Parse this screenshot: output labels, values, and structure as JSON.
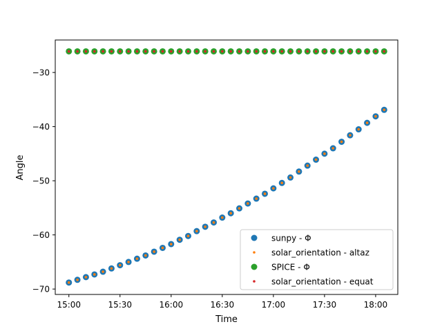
{
  "chart_data": {
    "type": "scatter",
    "xlabel": "Time",
    "ylabel": "Angle",
    "x_tick_labels": [
      "15:00",
      "15:30",
      "16:00",
      "16:30",
      "17:00",
      "17:30",
      "18:00"
    ],
    "x_ticks": [
      "15:00",
      "15:30",
      "16:00",
      "16:30",
      "17:00",
      "17:30",
      "18:00"
    ],
    "y_ticks": [
      -30,
      -40,
      -50,
      -60,
      -70
    ],
    "y_tick_labels": [
      "−30",
      "−40",
      "−50",
      "−60",
      "−70"
    ],
    "xlim": [
      "14:52",
      "18:13"
    ],
    "ylim": [
      -71,
      -24
    ],
    "grid": false,
    "legend": {
      "position": "lower-right",
      "entries": [
        {
          "label": "sunpy - Φ",
          "color": "#1f77b4",
          "marker": "large-circle"
        },
        {
          "label": "solar_orientation - altaz",
          "color": "#ff7f0e",
          "marker": "small-circle"
        },
        {
          "label": "SPICE - Φ",
          "color": "#2ca02c",
          "marker": "large-circle"
        },
        {
          "label": "solar_orientation - equat",
          "color": "#d62728",
          "marker": "small-circle"
        }
      ]
    },
    "x": [
      "15:00",
      "15:05",
      "15:10",
      "15:15",
      "15:20",
      "15:25",
      "15:30",
      "15:35",
      "15:40",
      "15:45",
      "15:50",
      "15:55",
      "16:00",
      "16:05",
      "16:10",
      "16:15",
      "16:20",
      "16:25",
      "16:30",
      "16:35",
      "16:40",
      "16:45",
      "16:50",
      "16:55",
      "17:00",
      "17:05",
      "17:10",
      "17:15",
      "17:20",
      "17:25",
      "17:30",
      "17:35",
      "17:40",
      "17:45",
      "17:50",
      "17:55",
      "18:00",
      "18:05"
    ],
    "series": [
      {
        "name": "sunpy - Φ",
        "color": "#1f77b4",
        "values": [
          -68.8,
          -68.3,
          -67.8,
          -67.3,
          -66.8,
          -66.2,
          -65.6,
          -65.0,
          -64.4,
          -63.8,
          -63.1,
          -62.4,
          -61.7,
          -60.9,
          -60.2,
          -59.3,
          -58.5,
          -57.7,
          -56.8,
          -56.0,
          -55.1,
          -54.2,
          -53.3,
          -52.4,
          -51.4,
          -50.4,
          -49.4,
          -48.3,
          -47.2,
          -46.1,
          -45.0,
          -44.0,
          -42.8,
          -41.6,
          -40.5,
          -39.3,
          -38.1,
          -36.9
        ]
      },
      {
        "name": "solar_orientation - altaz",
        "color": "#ff7f0e",
        "values": [
          -68.8,
          -68.3,
          -67.8,
          -67.3,
          -66.8,
          -66.2,
          -65.6,
          -65.0,
          -64.4,
          -63.8,
          -63.1,
          -62.4,
          -61.7,
          -60.9,
          -60.2,
          -59.3,
          -58.5,
          -57.7,
          -56.8,
          -56.0,
          -55.1,
          -54.2,
          -53.3,
          -52.4,
          -51.4,
          -50.4,
          -49.4,
          -48.3,
          -47.2,
          -46.1,
          -45.0,
          -44.0,
          -42.8,
          -41.6,
          -40.5,
          -39.3,
          -38.1,
          -36.9
        ]
      },
      {
        "name": "SPICE - Φ",
        "color": "#2ca02c",
        "values": [
          -26.1,
          -26.1,
          -26.1,
          -26.1,
          -26.1,
          -26.1,
          -26.1,
          -26.1,
          -26.1,
          -26.1,
          -26.1,
          -26.1,
          -26.1,
          -26.1,
          -26.1,
          -26.1,
          -26.1,
          -26.1,
          -26.1,
          -26.1,
          -26.1,
          -26.1,
          -26.1,
          -26.1,
          -26.1,
          -26.1,
          -26.1,
          -26.1,
          -26.1,
          -26.1,
          -26.1,
          -26.1,
          -26.1,
          -26.1,
          -26.1,
          -26.1,
          -26.1,
          -26.1
        ]
      },
      {
        "name": "solar_orientation - equat",
        "color": "#d62728",
        "values": [
          -26.1,
          -26.1,
          -26.1,
          -26.1,
          -26.1,
          -26.1,
          -26.1,
          -26.1,
          -26.1,
          -26.1,
          -26.1,
          -26.1,
          -26.1,
          -26.1,
          -26.1,
          -26.1,
          -26.1,
          -26.1,
          -26.1,
          -26.1,
          -26.1,
          -26.1,
          -26.1,
          -26.1,
          -26.1,
          -26.1,
          -26.1,
          -26.1,
          -26.1,
          -26.1,
          -26.1,
          -26.1,
          -26.1,
          -26.1,
          -26.1,
          -26.1,
          -26.1,
          -26.1
        ]
      }
    ]
  }
}
